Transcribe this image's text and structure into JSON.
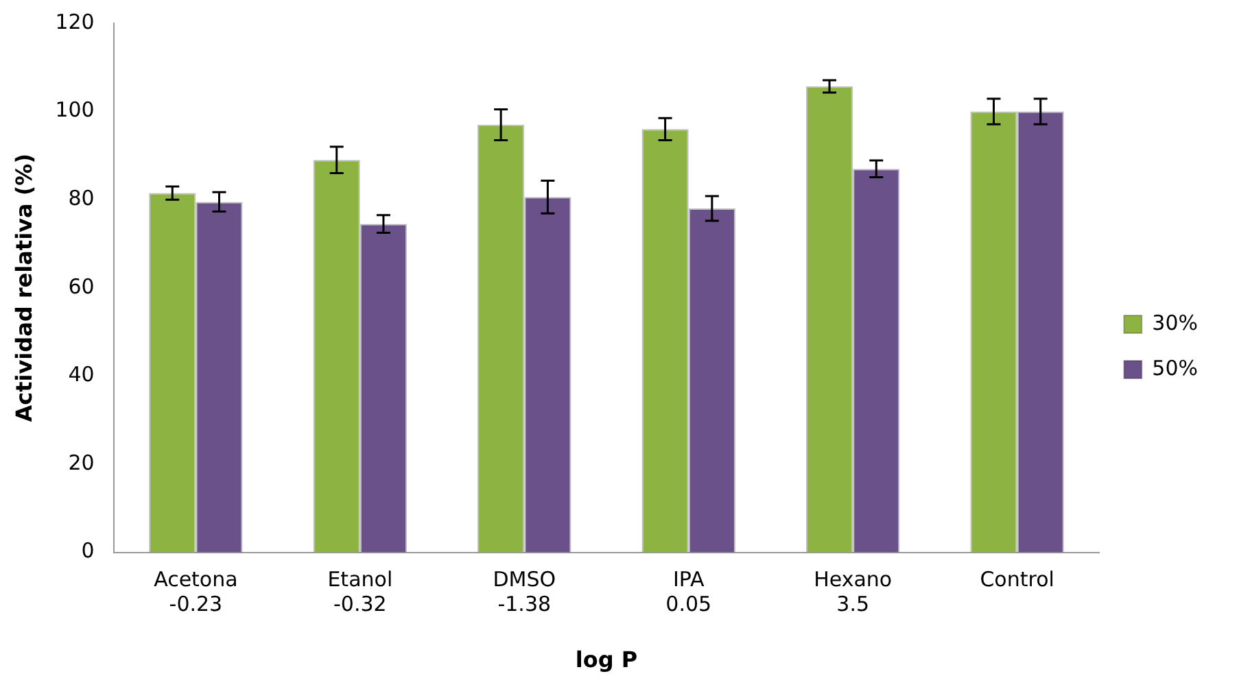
{
  "chart_data": {
    "type": "bar",
    "xlabel": "log P",
    "ylabel": "Actividad relativa (%)",
    "categories": [
      "Acetona\n-0.23",
      "Etanol\n-0.32",
      "DMSO\n-1.38",
      "IPA\n0.05",
      "Hexano\n3.5",
      "Control"
    ],
    "series": [
      {
        "name": "30%",
        "color": "#8db343",
        "values": [
          81.5,
          89,
          97,
          96,
          105.7,
          100
        ],
        "errors": [
          1.5,
          3,
          3.5,
          2.5,
          1.4,
          2.9
        ]
      },
      {
        "name": "50%",
        "color": "#6a5189",
        "values": [
          79.5,
          74.5,
          80.6,
          78,
          87,
          100
        ],
        "errors": [
          2.2,
          2,
          3.7,
          2.8,
          1.9,
          2.9
        ]
      }
    ],
    "ylim": [
      0,
      120
    ],
    "yticks": [
      0,
      20,
      40,
      60,
      80,
      100,
      120
    ],
    "grid": false,
    "legend": "right"
  }
}
